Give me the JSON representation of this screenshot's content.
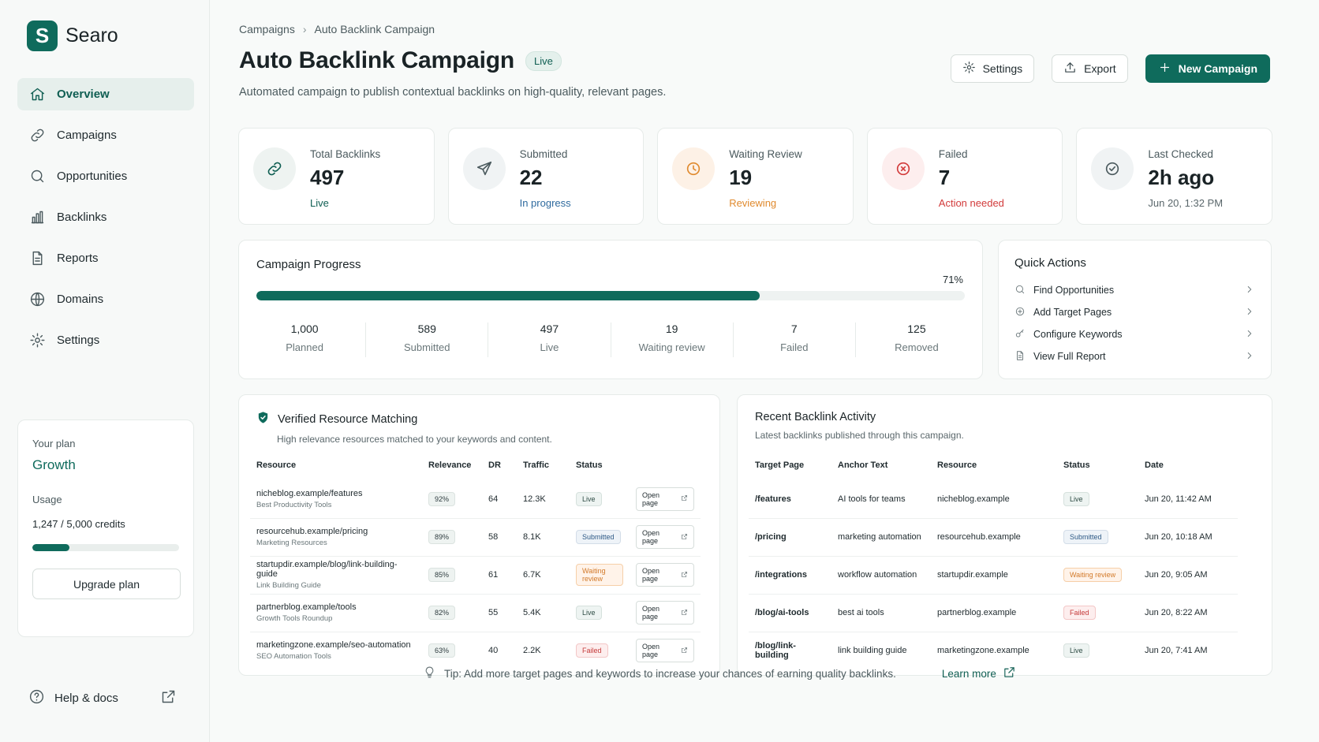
{
  "brand": {
    "logo_letter": "S",
    "name": "Searo"
  },
  "nav": [
    {
      "label": "Overview",
      "icon": "home-icon",
      "active": true
    },
    {
      "label": "Campaigns",
      "icon": "link-icon"
    },
    {
      "label": "Opportunities",
      "icon": "search-icon"
    },
    {
      "label": "Backlinks",
      "icon": "bar-chart-icon"
    },
    {
      "label": "Reports",
      "icon": "document-icon"
    },
    {
      "label": "Domains",
      "icon": "globe-icon"
    },
    {
      "label": "Settings",
      "icon": "gear-icon"
    }
  ],
  "plan": {
    "label": "Your plan",
    "name": "Growth",
    "usage_label": "Usage",
    "usage_value": "1,247 / 5,000 credits",
    "usage_fraction": 0.25,
    "upgrade_label": "Upgrade plan"
  },
  "help": {
    "label": "Help & docs"
  },
  "breadcrumb": {
    "parent": "Campaigns",
    "current": "Auto Backlink Campaign"
  },
  "page": {
    "title": "Auto Backlink Campaign",
    "status": "Live",
    "subtitle": "Automated campaign to publish contextual backlinks on high-quality, relevant pages."
  },
  "actions": {
    "settings": "Settings",
    "export": "Export",
    "new_campaign": "New Campaign"
  },
  "stats": [
    {
      "label": "Total Backlinks",
      "value": "497",
      "sub": "Live",
      "icon": "link-icon",
      "sub_color": "#0f5e52"
    },
    {
      "label": "Submitted",
      "value": "22",
      "sub": "In progress",
      "icon": "send-icon",
      "sub_color": "#2e6a9e"
    },
    {
      "label": "Waiting Review",
      "value": "19",
      "sub": "Reviewing",
      "icon": "clock-icon",
      "sub_color": "#e08a2e"
    },
    {
      "label": "Failed",
      "value": "7",
      "sub": "Action needed",
      "icon": "x-circle-icon",
      "sub_color": "#d23b3b"
    },
    {
      "label": "Last Checked",
      "value": "2h ago",
      "sub": "Jun 20, 1:32 PM",
      "icon": "check-circle-icon",
      "sub_color": "#5a676b"
    }
  ],
  "progress": {
    "title": "Campaign Progress",
    "percent_label": "71%",
    "percent": 71,
    "items": [
      {
        "value": "1,000",
        "label": "Planned"
      },
      {
        "value": "589",
        "label": "Submitted"
      },
      {
        "value": "497",
        "label": "Live"
      },
      {
        "value": "19",
        "label": "Waiting review"
      },
      {
        "value": "7",
        "label": "Failed"
      },
      {
        "value": "125",
        "label": "Removed"
      }
    ]
  },
  "quick_actions": {
    "title": "Quick Actions",
    "items": [
      {
        "label": "Find Opportunities",
        "icon": "search-icon"
      },
      {
        "label": "Add Target Pages",
        "icon": "plus-circle-icon"
      },
      {
        "label": "Configure Keywords",
        "icon": "key-icon"
      },
      {
        "label": "View Full Report",
        "icon": "document-icon"
      }
    ]
  },
  "resources": {
    "title": "Verified Resource Matching",
    "description": "High relevance resources matched to your keywords and content.",
    "columns": [
      "Resource",
      "Relevance",
      "DR",
      "Traffic",
      "Status",
      ""
    ],
    "open_label": "Open page",
    "rows": [
      {
        "url": "nicheblog.example/features",
        "name": "Best Productivity Tools",
        "relevance": "92%",
        "dr": "64",
        "traffic": "12.3K",
        "status": "Live",
        "status_type": "live"
      },
      {
        "url": "resourcehub.example/pricing",
        "name": "Marketing Resources",
        "relevance": "89%",
        "dr": "58",
        "traffic": "8.1K",
        "status": "Submitted",
        "status_type": "submitted"
      },
      {
        "url": "startupdir.example/blog/link-building-guide",
        "name": "Link Building Guide",
        "relevance": "85%",
        "dr": "61",
        "traffic": "6.7K",
        "status": "Waiting review",
        "status_type": "waiting"
      },
      {
        "url": "partnerblog.example/tools",
        "name": "Growth Tools Roundup",
        "relevance": "82%",
        "dr": "55",
        "traffic": "5.4K",
        "status": "Live",
        "status_type": "live"
      },
      {
        "url": "marketingzone.example/seo-automation",
        "name": "SEO Automation Tools",
        "relevance": "63%",
        "dr": "40",
        "traffic": "2.2K",
        "status": "Failed",
        "status_type": "failed"
      }
    ]
  },
  "activity": {
    "title": "Recent Backlink Activity",
    "description": "Latest backlinks published through this campaign.",
    "columns": [
      "Target Page",
      "Anchor Text",
      "Resource",
      "Status",
      "Date"
    ],
    "rows": [
      {
        "page": "/features",
        "anchor": "AI tools for teams",
        "resource": "nicheblog.example",
        "status": "Live",
        "status_type": "live",
        "date": "Jun 20, 11:42 AM"
      },
      {
        "page": "/pricing",
        "anchor": "marketing automation",
        "resource": "resourcehub.example",
        "status": "Submitted",
        "status_type": "submitted",
        "date": "Jun 20, 10:18 AM"
      },
      {
        "page": "/integrations",
        "anchor": "workflow automation",
        "resource": "startupdir.example",
        "status": "Waiting review",
        "status_type": "waiting",
        "date": "Jun 20, 9:05 AM"
      },
      {
        "page": "/blog/ai-tools",
        "anchor": "best ai tools",
        "resource": "partnerblog.example",
        "status": "Failed",
        "status_type": "failed",
        "date": "Jun 20, 8:22 AM"
      },
      {
        "page": "/blog/link-building",
        "anchor": "link building guide",
        "resource": "marketingzone.example",
        "status": "Live",
        "status_type": "live",
        "date": "Jun 20, 7:41 AM"
      }
    ]
  },
  "tip": {
    "text": "Tip: Add more target pages and keywords to increase your chances of earning quality backlinks.",
    "link": "Learn more"
  },
  "colors": {
    "brand": "#0f6b5c",
    "accent_bg": "#e6efec"
  }
}
